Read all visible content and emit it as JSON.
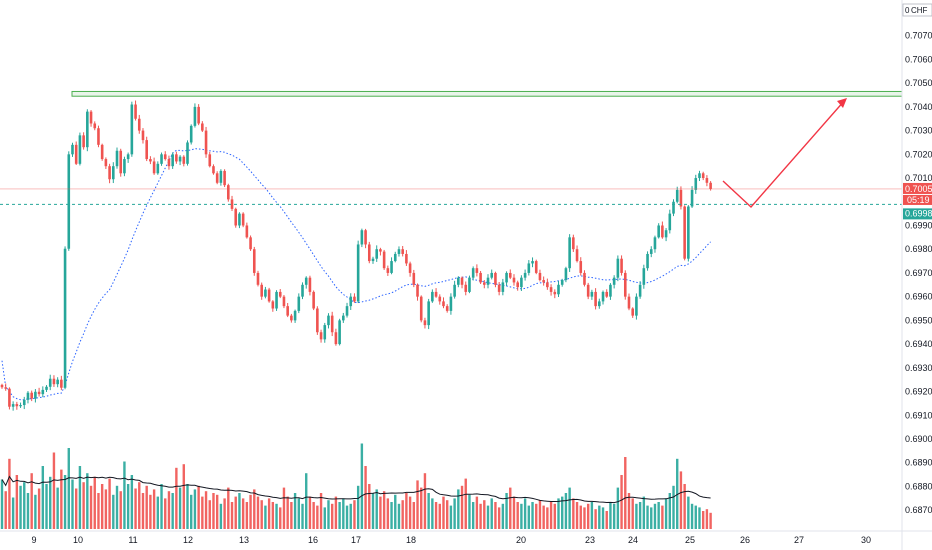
{
  "chart_data": {
    "type": "candlestick",
    "symbol_badge": "CHF",
    "symbol_badge_suffix": "0",
    "y_axis_ticks": [
      "0.70700",
      "0.70600",
      "0.70500",
      "0.70400",
      "0.70300",
      "0.70200",
      "0.70100",
      "0.69900",
      "0.69800",
      "0.69700",
      "0.69600",
      "0.69500",
      "0.69400",
      "0.69300",
      "0.69200",
      "0.69100",
      "0.69000",
      "0.68900",
      "0.68800",
      "0.68700"
    ],
    "ylim": [
      0.6865,
      0.708
    ],
    "x_axis_ticks": [
      "9",
      "10",
      "11",
      "12",
      "13",
      "16",
      "17",
      "18",
      "20",
      "23",
      "24",
      "25",
      "26",
      "27",
      "30"
    ],
    "current_price": "0.70054",
    "countdown": "05:19",
    "target_price": "0.69989",
    "resistance_zone": [
      0.70445,
      0.70465
    ],
    "colors": {
      "up": "#26a69a",
      "down": "#ef5350",
      "ma": "#2962ff",
      "zone": "#4caf50",
      "arrow": "#f23645",
      "volume_ma": "#131722"
    },
    "closes": [
      0.69218,
      0.69212,
      0.69136,
      0.69147,
      0.69138,
      0.69143,
      0.69165,
      0.69195,
      0.6917,
      0.69199,
      0.69189,
      0.69207,
      0.6922,
      0.69254,
      0.69231,
      0.6925,
      0.69216,
      0.69802,
      0.702,
      0.7024,
      0.7016,
      0.7028,
      0.7023,
      0.7038,
      0.7033,
      0.7031,
      0.7024,
      0.7018,
      0.7015,
      0.70095,
      0.7015,
      0.70215,
      0.7012,
      0.7018,
      0.702,
      0.7041,
      0.7035,
      0.703,
      0.7026,
      0.7018,
      0.7017,
      0.7012,
      0.7016,
      0.702,
      0.7018,
      0.7015,
      0.702,
      0.7017,
      0.7019,
      0.7016,
      0.7025,
      0.7032,
      0.704,
      0.7033,
      0.703,
      0.702,
      0.7015,
      0.7012,
      0.7008,
      0.7013,
      0.7007,
      0.7001,
      0.6997,
      0.699,
      0.6995,
      0.699,
      0.6985,
      0.698,
      0.697,
      0.6965,
      0.696,
      0.6963,
      0.6958,
      0.6955,
      0.6962,
      0.696,
      0.6956,
      0.6952,
      0.695,
      0.6954,
      0.696,
      0.6965,
      0.6968,
      0.6962,
      0.6955,
      0.6945,
      0.6942,
      0.6948,
      0.6952,
      0.6945,
      0.694,
      0.695,
      0.6952,
      0.6956,
      0.696,
      0.6958,
      0.6982,
      0.6988,
      0.6982,
      0.6975,
      0.6976,
      0.698,
      0.6979,
      0.6972,
      0.697,
      0.6975,
      0.6978,
      0.698,
      0.6978,
      0.6974,
      0.697,
      0.6965,
      0.696,
      0.695,
      0.6948,
      0.6958,
      0.6962,
      0.696,
      0.6958,
      0.6956,
      0.6954,
      0.696,
      0.6965,
      0.6968,
      0.6965,
      0.6962,
      0.6968,
      0.6972,
      0.697,
      0.6966,
      0.6965,
      0.6968,
      0.697,
      0.6965,
      0.6962,
      0.6966,
      0.697,
      0.6968,
      0.6966,
      0.6964,
      0.6968,
      0.697,
      0.6974,
      0.6975,
      0.697,
      0.6967,
      0.6966,
      0.6964,
      0.6962,
      0.6961,
      0.6965,
      0.6967,
      0.6972,
      0.6985,
      0.698,
      0.6975,
      0.697,
      0.6965,
      0.696,
      0.6962,
      0.6956,
      0.6958,
      0.6962,
      0.696,
      0.6965,
      0.6968,
      0.6976,
      0.697,
      0.696,
      0.6955,
      0.6952,
      0.696,
      0.6965,
      0.6972,
      0.6978,
      0.698,
      0.6985,
      0.699,
      0.6985,
      0.6988,
      0.6995,
      0.7,
      0.7005,
      0.6998,
      0.6976,
      0.6998,
      0.7005,
      0.701,
      0.7012,
      0.701,
      0.7008,
      0.70054
    ],
    "ma_start": [
      0.6933,
      0.6922,
      0.692
    ],
    "volumes": [
      0.55,
      0.42,
      0.78,
      0.35,
      0.6,
      0.48,
      0.52,
      0.4,
      0.62,
      0.38,
      0.45,
      0.7,
      0.5,
      0.58,
      0.85,
      0.46,
      0.66,
      0.6,
      0.9,
      0.55,
      0.45,
      0.7,
      0.52,
      0.62,
      0.48,
      0.58,
      0.4,
      0.5,
      0.44,
      0.56,
      0.38,
      0.48,
      0.42,
      0.75,
      0.5,
      0.6,
      0.45,
      0.52,
      0.4,
      0.48,
      0.38,
      0.44,
      0.36,
      0.5,
      0.34,
      0.42,
      0.4,
      0.68,
      0.46,
      0.72,
      0.5,
      0.38,
      0.44,
      0.48,
      0.36,
      0.42,
      0.32,
      0.4,
      0.38,
      0.28,
      0.34,
      0.46,
      0.3,
      0.36,
      0.4,
      0.34,
      0.3,
      0.38,
      0.44,
      0.36,
      0.32,
      0.26,
      0.34,
      0.3,
      0.28,
      0.24,
      0.46,
      0.36,
      0.3,
      0.4,
      0.34,
      0.28,
      0.62,
      0.36,
      0.3,
      0.26,
      0.4,
      0.24,
      0.32,
      0.28,
      0.36,
      0.3,
      0.34,
      0.26,
      0.28,
      0.32,
      0.48,
      0.95,
      0.7,
      0.5,
      0.4,
      0.44,
      0.36,
      0.42,
      0.34,
      0.3,
      0.38,
      0.28,
      0.32,
      0.4,
      0.36,
      0.3,
      0.54,
      0.46,
      0.62,
      0.4,
      0.34,
      0.3,
      0.28,
      0.36,
      0.32,
      0.26,
      0.34,
      0.44,
      0.48,
      0.56,
      0.38,
      0.3,
      0.36,
      0.28,
      0.32,
      0.26,
      0.34,
      0.3,
      0.24,
      0.28,
      0.4,
      0.46,
      0.36,
      0.3,
      0.28,
      0.34,
      0.26,
      0.3,
      0.28,
      0.32,
      0.26,
      0.24,
      0.3,
      0.28,
      0.34,
      0.36,
      0.4,
      0.46,
      0.34,
      0.3,
      0.26,
      0.24,
      0.28,
      0.3,
      0.22,
      0.26,
      0.24,
      0.2,
      0.3,
      0.28,
      0.46,
      0.6,
      0.8,
      0.4,
      0.34,
      0.28,
      0.3,
      0.36,
      0.26,
      0.24,
      0.28,
      0.3,
      0.26,
      0.34,
      0.4,
      0.48,
      0.78,
      0.64,
      0.5,
      0.36,
      0.28,
      0.26,
      0.24,
      0.2,
      0.22,
      0.18
    ]
  }
}
